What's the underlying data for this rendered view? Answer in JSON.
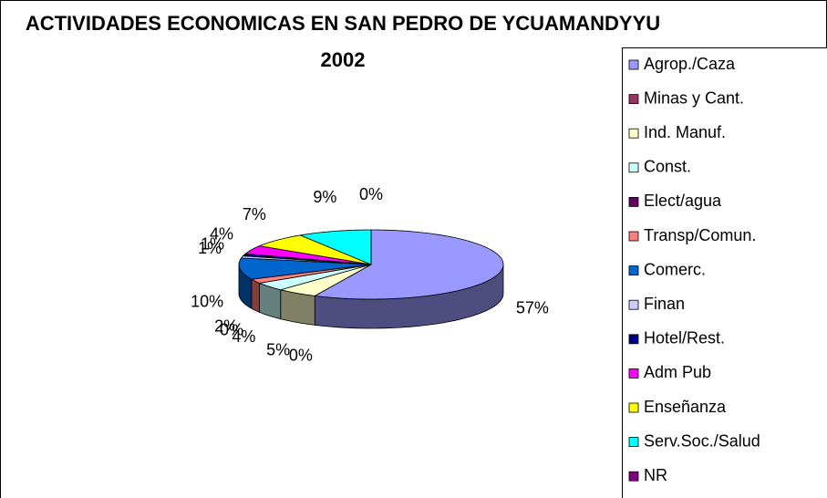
{
  "chart_data": {
    "type": "pie",
    "title": "ACTIVIDADES ECONOMICAS EN SAN PEDRO DE YCUAMANDYYU 2002",
    "categories": [
      "Agrop./Caza",
      "Minas y Cant.",
      "Ind. Manuf.",
      "Const.",
      "Elect/agua",
      "Transp/Comun.",
      "Comerc.",
      "Finan",
      "Hotel/Rest.",
      "Adm Pub",
      "Enseñanza",
      "Serv.Soc./Salud",
      "NR"
    ],
    "values": [
      57,
      0,
      5,
      4,
      0,
      2,
      10,
      1,
      1,
      4,
      7,
      9,
      0
    ],
    "value_labels": [
      "57%",
      "0%",
      "5%",
      "4%",
      "0%",
      "2%",
      "10%",
      "1%",
      "1%",
      "4%",
      "7%",
      "9%",
      "0%"
    ],
    "colors": [
      "#9999ff",
      "#993366",
      "#ffffcc",
      "#ccffff",
      "#660066",
      "#ff8080",
      "#0066cc",
      "#ccccff",
      "#000080",
      "#ff00ff",
      "#ffff00",
      "#00ffff",
      "#800080"
    ],
    "legend": "right"
  }
}
